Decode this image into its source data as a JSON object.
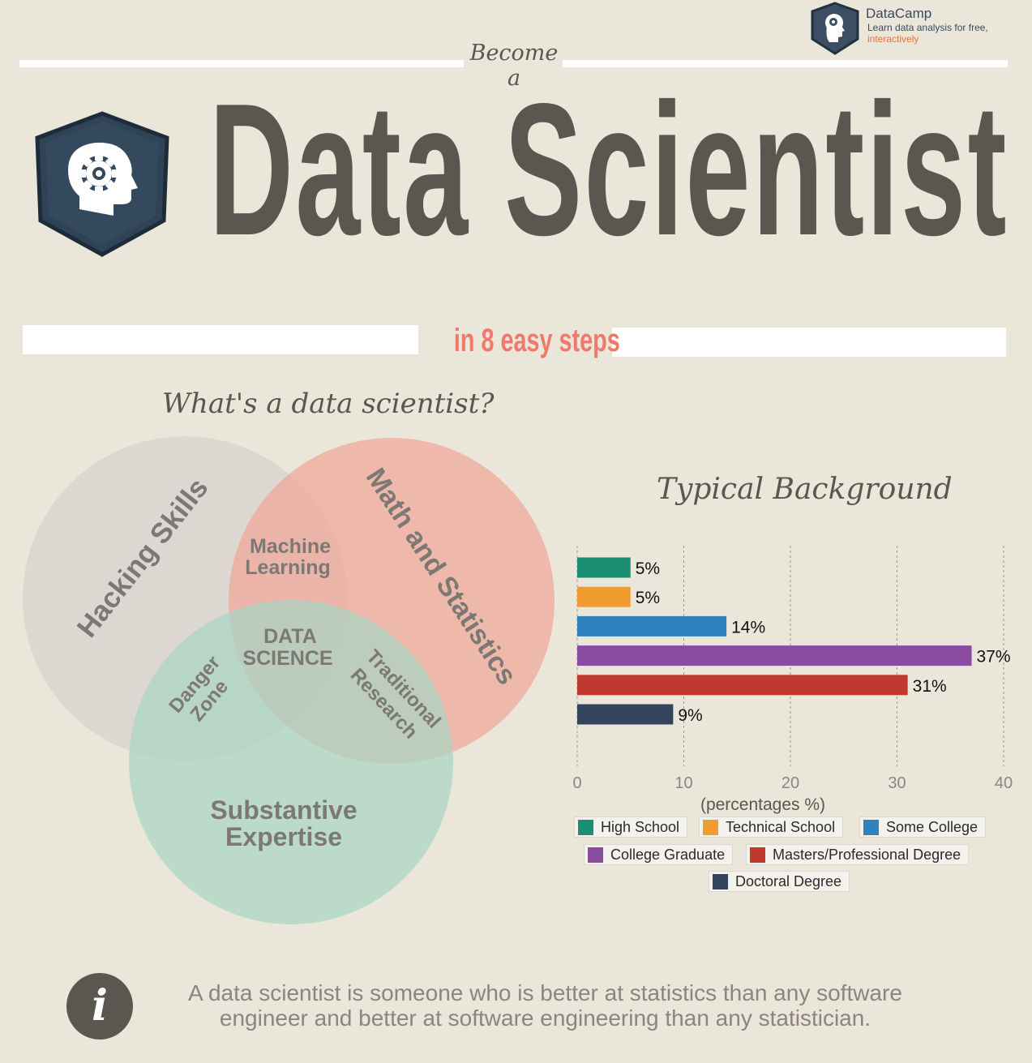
{
  "brand": {
    "name": "DataCamp",
    "tagline": "Learn data analysis for free,",
    "tagline_highlight": "interactively",
    "logo_icon": "head-gear-icon"
  },
  "header": {
    "kicker": "Become a",
    "title": "Data Scientist",
    "subtitle": "in 8 easy steps",
    "logo_icon": "head-gear-icon"
  },
  "venn": {
    "title": "What's a data scientist?",
    "circles": [
      {
        "label": "Hacking Skills",
        "color": "#d9d6cf"
      },
      {
        "label": "Math and Statistics",
        "color": "#eeaa9c"
      },
      {
        "label": "Substantive Expertise",
        "color": "#a9d6c4"
      }
    ],
    "overlaps": {
      "hacking_math_line1": "Machine",
      "hacking_math_line2": "Learning",
      "center_line1": "DATA",
      "center_line2": "SCIENCE",
      "hacking_sub_line1": "Danger",
      "hacking_sub_line2": "Zone",
      "math_sub_line1": "Traditional",
      "math_sub_line2": "Research"
    }
  },
  "chart_data": {
    "type": "bar",
    "orientation": "horizontal",
    "title": "Typical Background",
    "xlabel": "(percentages %)",
    "ylabel": "",
    "xlim": [
      0,
      40
    ],
    "xticks": [
      0,
      10,
      20,
      30,
      40
    ],
    "grid": true,
    "legend_placement": "bottom",
    "categories": [
      "High School",
      "Technical School",
      "Some College",
      "College Graduate",
      "Masters/Professional Degree",
      "Doctoral Degree"
    ],
    "values": [
      5,
      5,
      14,
      37,
      31,
      9
    ],
    "value_labels": [
      "5%",
      "5%",
      "14%",
      "37%",
      "31%",
      "9%"
    ],
    "colors": [
      "#1a8f72",
      "#f09c2f",
      "#2f81bf",
      "#8a4ca0",
      "#c0392f",
      "#34435e"
    ]
  },
  "footer": {
    "info_icon_glyph": "i",
    "quote_line1": "A data scientist is someone who is better at statistics than any software",
    "quote_line2": "engineer and better at software engineering than any statistician."
  }
}
